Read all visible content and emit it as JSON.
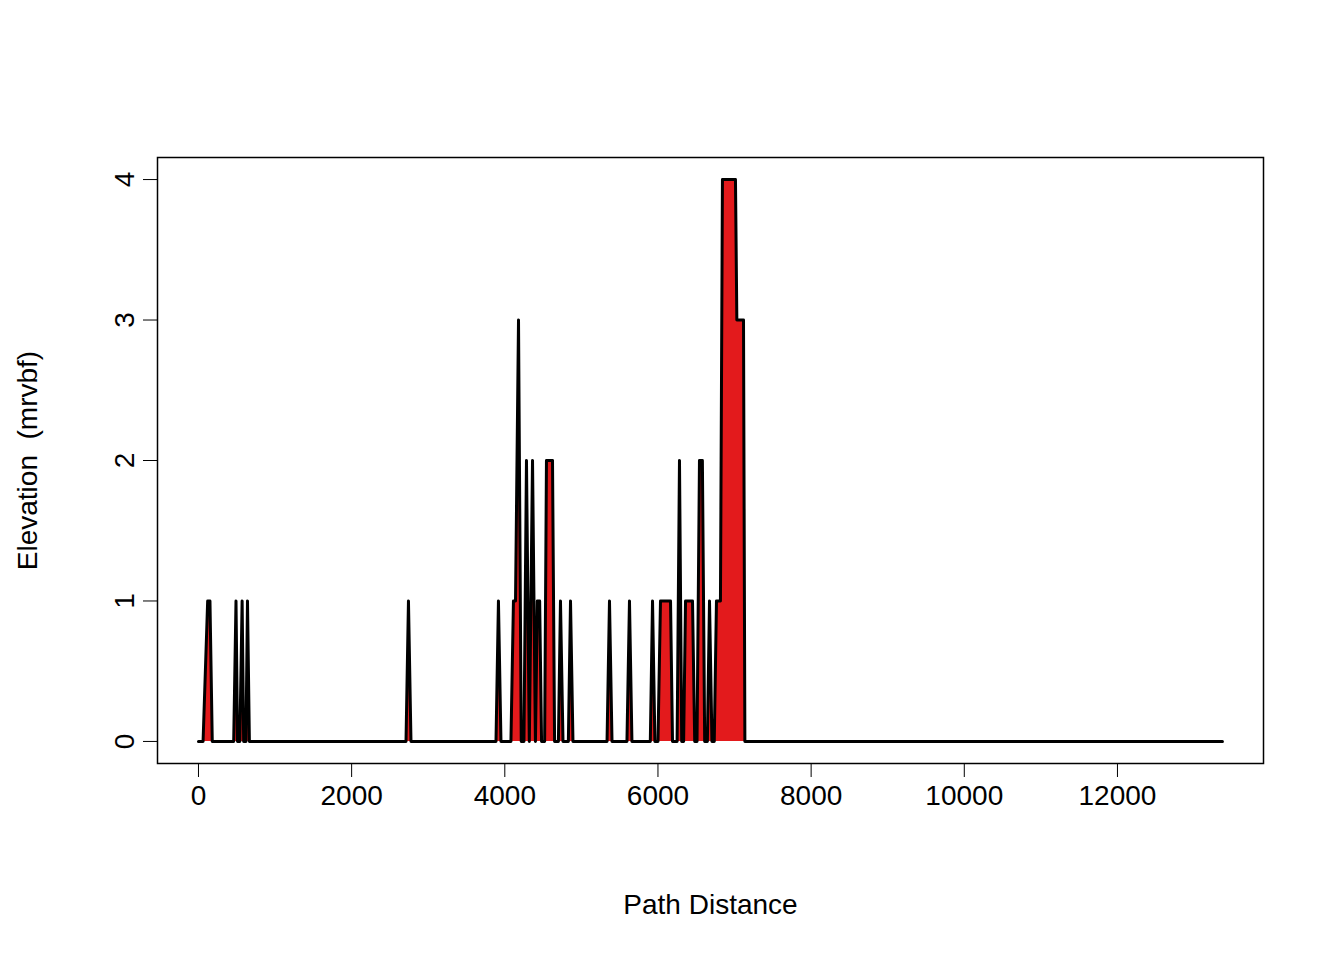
{
  "chart_data": {
    "type": "area",
    "xlabel": "Path Distance",
    "ylabel": "Elevation  (mrvbf)",
    "color": "#e31a1c",
    "x": [
      0,
      60,
      120,
      150,
      180,
      460,
      490,
      510,
      540,
      570,
      590,
      620,
      640,
      665,
      2710,
      2742,
      2775,
      3885,
      3917,
      3950,
      4080,
      4113,
      4140,
      4179,
      4215,
      4250,
      4283,
      4320,
      4362,
      4400,
      4425,
      4455,
      4480,
      4520,
      4544,
      4623,
      4650,
      4700,
      4727,
      4760,
      4830,
      4858,
      4890,
      5335,
      5367,
      5400,
      5595,
      5628,
      5660,
      5900,
      5929,
      5960,
      6000,
      6033,
      6164,
      6190,
      6250,
      6281,
      6310,
      6335,
      6360,
      6451,
      6480,
      6510,
      6542,
      6580,
      6610,
      6645,
      6673,
      6705,
      6735,
      6764,
      6816,
      6842,
      7012,
      7030,
      7117,
      7135,
      13371
    ],
    "values": [
      0,
      0,
      1,
      1,
      0,
      0,
      1,
      0,
      0,
      1,
      0,
      0,
      1,
      0,
      0,
      1,
      0,
      0,
      1,
      0,
      0,
      1,
      1,
      3,
      0,
      0,
      2,
      0,
      2,
      0,
      1,
      1,
      0,
      0,
      2,
      2,
      0,
      0,
      1,
      0,
      0,
      1,
      0,
      0,
      1,
      0,
      0,
      1,
      0,
      0,
      1,
      0,
      0,
      1,
      1,
      0,
      0,
      2,
      0,
      0,
      1,
      1,
      0,
      0,
      2,
      2,
      0,
      0,
      1,
      0,
      0,
      1,
      1,
      4,
      4,
      3,
      3,
      0,
      0
    ],
    "xlim": [
      -535,
      13907
    ],
    "ylim": [
      -0.157,
      4.157
    ],
    "xticks": [
      0,
      2000,
      4000,
      6000,
      8000,
      10000,
      12000
    ],
    "yticks": [
      0,
      1,
      2,
      3,
      4
    ],
    "grid": false
  }
}
